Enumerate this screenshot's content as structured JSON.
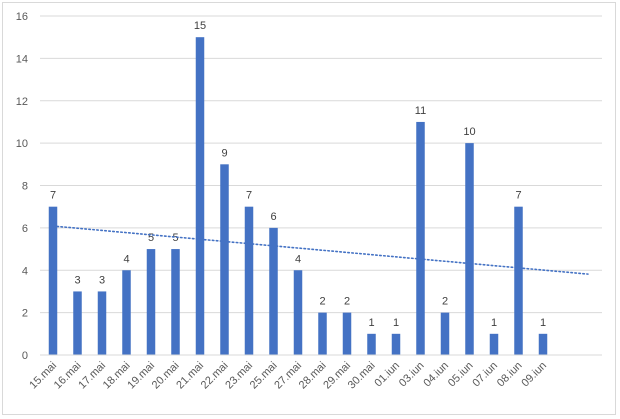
{
  "chart_data": {
    "type": "bar",
    "title": "",
    "xlabel": "",
    "ylabel": "",
    "categories": [
      "15.mai",
      "16.mai",
      "17.mai",
      "18.mai",
      "19.mai",
      "20.mai",
      "21.mai",
      "22.mai",
      "23.mai",
      "25.mai",
      "27.mai",
      "28.mai",
      "29.mai",
      "30.mai",
      "01.iun",
      "03.iun",
      "04.iun",
      "05.iun",
      "07.iun",
      "08.iun",
      "09.iun"
    ],
    "series": [
      {
        "values": [
          7,
          3,
          3,
          4,
          5,
          5,
          15,
          9,
          7,
          6,
          4,
          2,
          2,
          1,
          1,
          11,
          2,
          10,
          1,
          7,
          1
        ],
        "color": "#4472c4",
        "data_labels": true
      }
    ],
    "trendline": {
      "type": "linear",
      "style": "dotted",
      "color": "#4472c4"
    },
    "ylim": [
      0,
      16
    ],
    "yticks": [
      0,
      2,
      4,
      6,
      8,
      10,
      12,
      14,
      16
    ],
    "grid": true,
    "legend": "none",
    "gridline_color": "#d9d9d9",
    "axis_text_color": "#595959"
  }
}
